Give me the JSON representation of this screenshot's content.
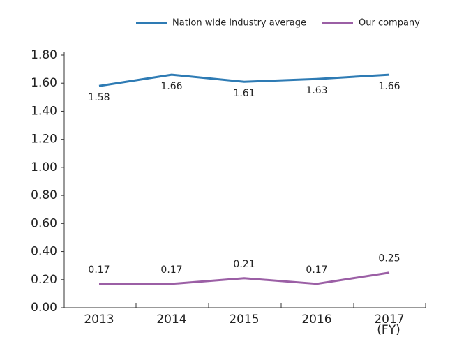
{
  "chart_data": {
    "type": "line",
    "categories": [
      "2013",
      "2014",
      "2015",
      "2016",
      "2017"
    ],
    "x_unit_label": "(FY)",
    "series": [
      {
        "name": "Nation wide industry average",
        "color": "#2e7bb4",
        "values": [
          1.58,
          1.66,
          1.61,
          1.63,
          1.66
        ],
        "label_position": "below"
      },
      {
        "name": "Our company",
        "color": "#9b5fa5",
        "values": [
          0.17,
          0.17,
          0.21,
          0.17,
          0.25
        ],
        "label_position": "above"
      }
    ],
    "ylim": [
      0,
      1.8
    ],
    "yticks": [
      {
        "value": 0,
        "label": "0.00"
      },
      {
        "value": 0.2,
        "label": "0.20"
      },
      {
        "value": 0.4,
        "label": "0.40"
      },
      {
        "value": 0.6,
        "label": "0.60"
      },
      {
        "value": 0.8,
        "label": "0.80"
      },
      {
        "value": 1.0,
        "label": "1.00"
      },
      {
        "value": 1.2,
        "label": "1.20"
      },
      {
        "value": 1.4,
        "label": "1.40"
      },
      {
        "value": 1.6,
        "label": "1.60"
      },
      {
        "value": 1.8,
        "label": "1.80"
      }
    ],
    "legend": "top",
    "grid": false
  }
}
